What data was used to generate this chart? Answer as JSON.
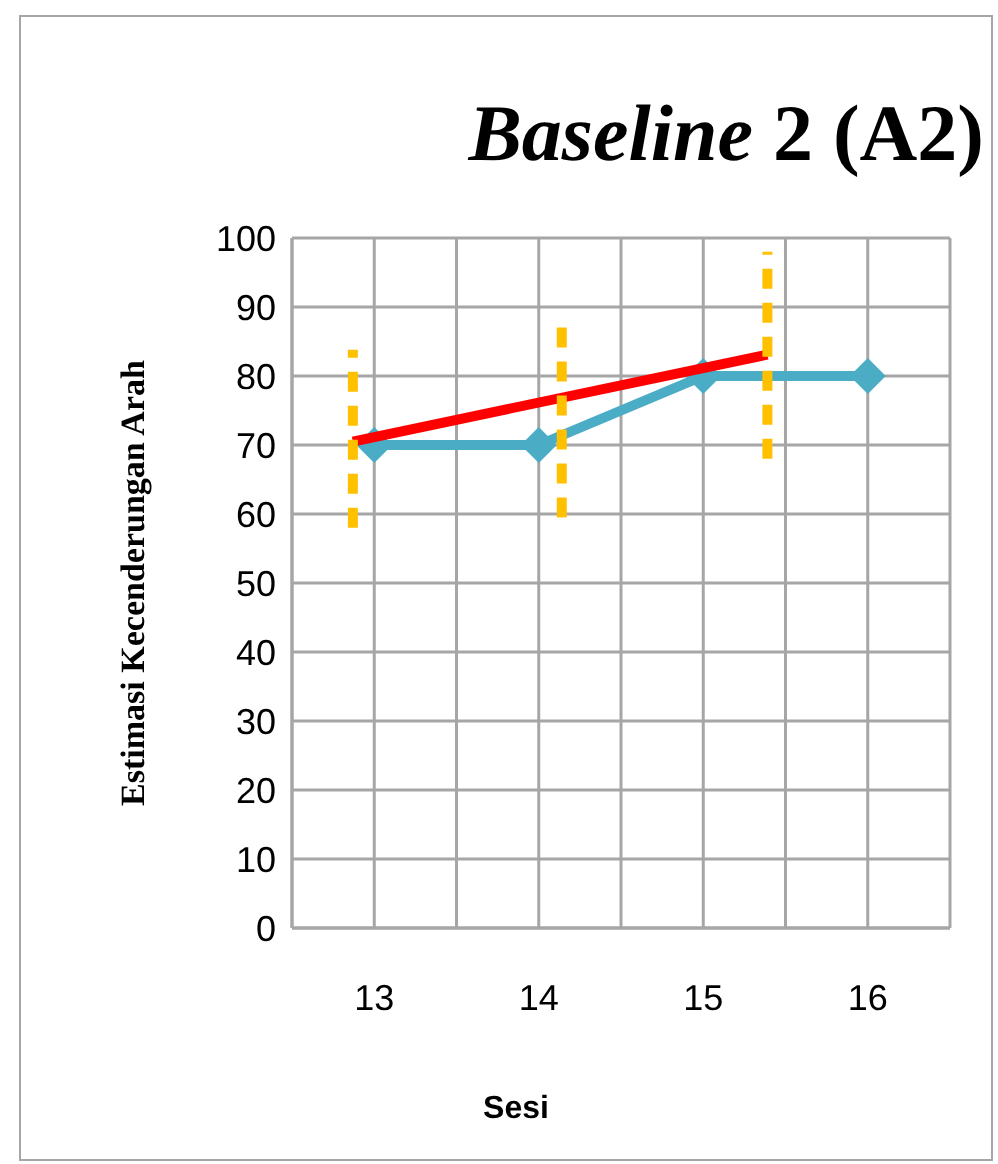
{
  "chart_data": {
    "type": "line",
    "title": "Baseline 2 (A2)",
    "xlabel": "Sesi",
    "ylabel": "Estimasi Kecenderungan Arah",
    "x": [
      13,
      14,
      15,
      16
    ],
    "series": [
      {
        "color": "#4bacc6",
        "values": [
          70,
          70,
          80,
          80
        ],
        "marker": "diamond",
        "line_style": "solid"
      },
      {
        "x": [
          12.87,
          15.39
        ],
        "color": "#ff0000",
        "values": [
          70.5,
          83.1
        ],
        "marker": "none",
        "line_style": "solid"
      },
      {
        "x": [
          12.87,
          12.87
        ],
        "color": "#ffc000",
        "values": [
          58,
          83.8
        ],
        "marker": "none",
        "line_style": "dashed"
      },
      {
        "x": [
          14.14,
          14.14
        ],
        "color": "#ffc000",
        "values": [
          59.5,
          87.5
        ],
        "marker": "none",
        "line_style": "dashed"
      },
      {
        "x": [
          15.39,
          15.39
        ],
        "color": "#ffc000",
        "values": [
          68,
          98
        ],
        "marker": "none",
        "line_style": "dashed"
      }
    ],
    "xlim": [
      12.5,
      16.5
    ],
    "xticks": [
      {
        "value": 12.5,
        "label": null
      },
      13,
      {
        "value": 13.5,
        "label": null
      },
      14,
      {
        "value": 14.5,
        "label": null
      },
      15,
      {
        "value": 15.5,
        "label": null
      },
      16,
      {
        "value": 16.5,
        "label": null
      }
    ],
    "ylim": [
      0,
      100
    ],
    "yticks": [
      0,
      10,
      20,
      30,
      40,
      50,
      60,
      70,
      80,
      90,
      100
    ],
    "grid": true
  }
}
